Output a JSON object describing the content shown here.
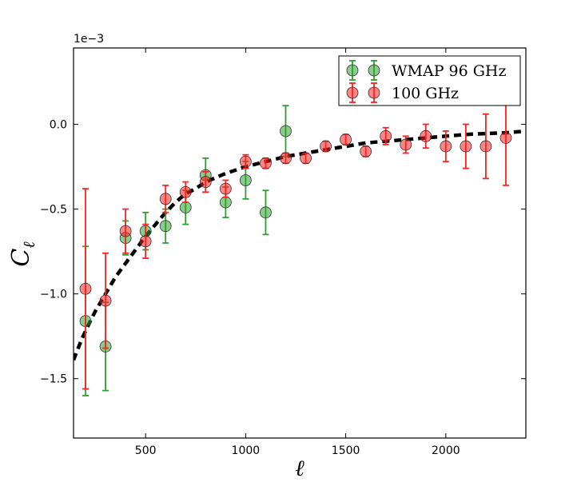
{
  "chart_data": {
    "type": "scatter",
    "xlabel": "ℓ",
    "ylabel": "C",
    "ylabel_subscript": "ℓ",
    "offset_label": "1e−3",
    "xlim": [
      140,
      2400
    ],
    "ylim": [
      -1.85,
      0.45
    ],
    "xticks": [
      500,
      1000,
      1500,
      2000
    ],
    "xtick_labels": [
      "500",
      "1000",
      "1500",
      "2000"
    ],
    "yticks": [
      0.0,
      -0.5,
      -1.0,
      -1.5
    ],
    "ytick_labels": [
      "0.0",
      "−0.5",
      "−1.0",
      "−1.5"
    ],
    "grid": false,
    "legend_position": "top-right",
    "series": [
      {
        "name": "WMAP 96 GHz",
        "color": "#2ca02c",
        "x": [
          200,
          300,
          400,
          500,
          600,
          700,
          800,
          900,
          1000,
          1100,
          1200
        ],
        "y": [
          -1.16,
          -1.31,
          -0.67,
          -0.63,
          -0.6,
          -0.49,
          -0.3,
          -0.46,
          -0.33,
          -0.52,
          -0.04
        ],
        "err": [
          0.44,
          0.26,
          0.1,
          0.11,
          0.1,
          0.1,
          0.1,
          0.09,
          0.11,
          0.13,
          0.15
        ]
      },
      {
        "name": "100 GHz",
        "color": "#ff2020",
        "x": [
          200,
          300,
          400,
          500,
          600,
          700,
          800,
          900,
          1000,
          1100,
          1200,
          1300,
          1400,
          1500,
          1600,
          1700,
          1800,
          1900,
          2000,
          2100,
          2200,
          2300
        ],
        "y": [
          -0.97,
          -1.04,
          -0.63,
          -0.69,
          -0.44,
          -0.4,
          -0.34,
          -0.38,
          -0.22,
          -0.23,
          -0.2,
          -0.2,
          -0.13,
          -0.09,
          -0.16,
          -0.07,
          -0.12,
          -0.07,
          -0.13,
          -0.13,
          -0.13,
          -0.08
        ],
        "err": [
          0.59,
          0.28,
          0.13,
          0.1,
          0.08,
          0.06,
          0.06,
          0.05,
          0.04,
          0.03,
          0.03,
          0.03,
          0.03,
          0.03,
          0.03,
          0.05,
          0.05,
          0.07,
          0.09,
          0.13,
          0.19,
          0.28
        ]
      }
    ],
    "model_curve": {
      "color": "#000000",
      "style": "dashed",
      "x": [
        140,
        160,
        180,
        200,
        220,
        250,
        280,
        310,
        350,
        400,
        450,
        500,
        550,
        600,
        650,
        700,
        750,
        800,
        900,
        1000,
        1100,
        1200,
        1300,
        1400,
        1500,
        1600,
        1700,
        1800,
        1900,
        2000,
        2100,
        2200,
        2300,
        2400
      ],
      "y": [
        -1.39,
        -1.33,
        -1.27,
        -1.22,
        -1.17,
        -1.1,
        -1.04,
        -0.98,
        -0.9,
        -0.82,
        -0.74,
        -0.66,
        -0.59,
        -0.52,
        -0.46,
        -0.41,
        -0.38,
        -0.34,
        -0.29,
        -0.25,
        -0.22,
        -0.19,
        -0.17,
        -0.15,
        -0.13,
        -0.11,
        -0.1,
        -0.09,
        -0.08,
        -0.07,
        -0.06,
        -0.055,
        -0.05,
        -0.04
      ]
    }
  }
}
